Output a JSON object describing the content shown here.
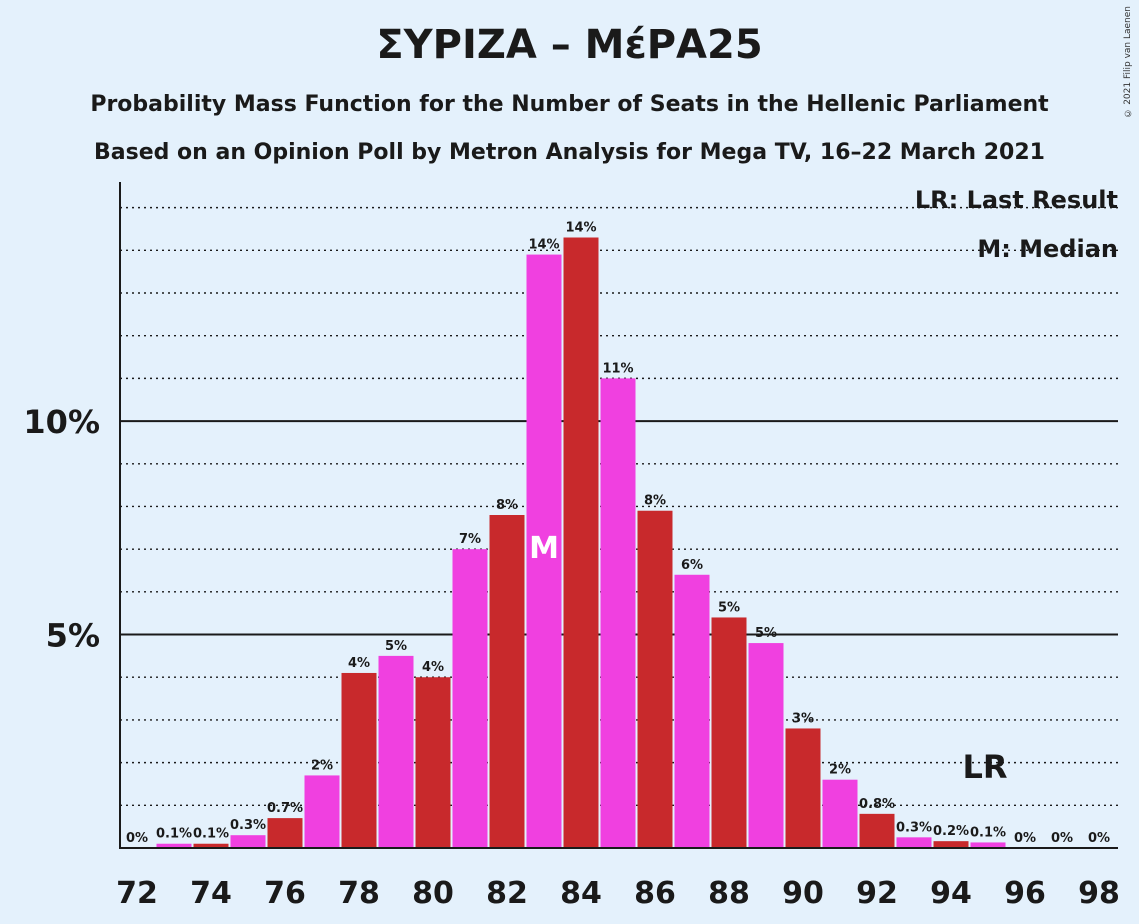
{
  "chart_data": {
    "type": "bar",
    "title": "ΣΥΡΙΖΑ – ΜέΡΑ25",
    "subtitle": "Probability Mass Function for the Number of Seats in the Hellenic Parliament",
    "subtitle2": "Based on an Opinion Poll by Metron Analysis for Mega TV, 16–22 March 2021",
    "copyright": "© 2021 Filip van Laenen",
    "legend": [
      "LR: Last Result",
      "M: Median"
    ],
    "ylim": [
      0,
      15.6
    ],
    "yticks": [
      {
        "value": 5,
        "label": "5%"
      },
      {
        "value": 10,
        "label": "10%"
      }
    ],
    "xticks": [
      72,
      74,
      76,
      78,
      80,
      82,
      84,
      86,
      88,
      90,
      92,
      94,
      96,
      98
    ],
    "x": [
      72,
      73,
      74,
      75,
      76,
      77,
      78,
      79,
      80,
      81,
      82,
      83,
      84,
      85,
      86,
      87,
      88,
      89,
      90,
      91,
      92,
      93,
      94,
      95,
      96,
      97,
      98
    ],
    "values": [
      0,
      0.1,
      0.1,
      0.3,
      0.7,
      1.7,
      4.1,
      4.5,
      4.0,
      7.0,
      7.8,
      13.9,
      14.3,
      11.0,
      7.9,
      6.4,
      5.4,
      4.8,
      2.8,
      1.6,
      0.8,
      0.25,
      0.16,
      0.13,
      0,
      0,
      0
    ],
    "labels": [
      "0%",
      "0.1%",
      "0.1%",
      "0.3%",
      "0.7%",
      "2%",
      "4%",
      "5%",
      "4%",
      "7%",
      "8%",
      "14%",
      "14%",
      "11%",
      "8%",
      "6%",
      "5%",
      "5%",
      "3%",
      "2%",
      "0.8%",
      "0.3%",
      "0.2%",
      "0.1%",
      "0%",
      "0%",
      "0%"
    ],
    "median_seat": 84,
    "median_marker": "M",
    "last_result_seat": 95,
    "last_result_marker": "LR",
    "colors": {
      "red": "#c8292c",
      "pink": "#f040e0",
      "background": "#e4f1fc"
    }
  }
}
